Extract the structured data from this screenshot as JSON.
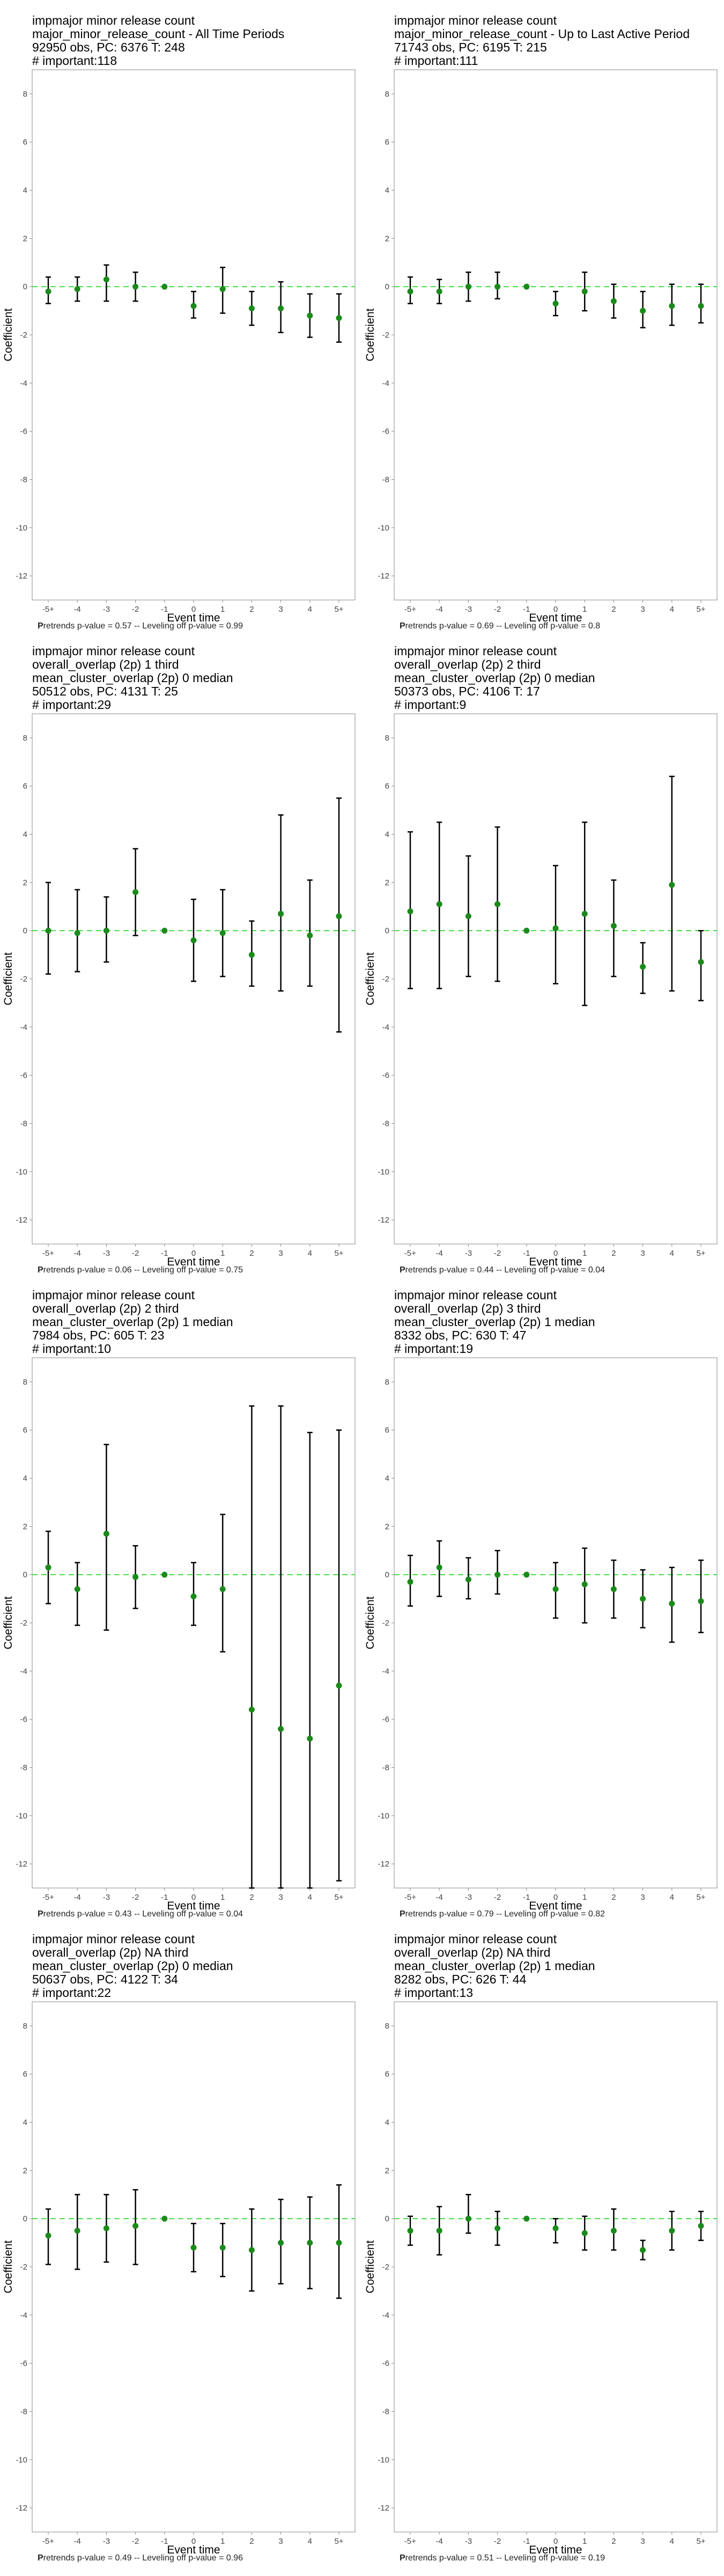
{
  "chart_data": [
    {
      "type": "scatter",
      "title_lines": [
        " impmajor minor release count",
        "major_minor_release_count - All Time Periods",
        "92950 obs, PC: 6376 T: 248",
        "# important:118"
      ],
      "xlabel": "Event time",
      "ylabel": "Coefficient",
      "categories": [
        "-5+",
        "-4",
        "-3",
        "-2",
        "-1",
        "0",
        "1",
        "2",
        "3",
        "4",
        "5+"
      ],
      "ylim": [
        -13,
        9
      ],
      "yticks": [
        -12,
        -10,
        -8,
        -6,
        -4,
        -2,
        0,
        2,
        4,
        6,
        8
      ],
      "values": [
        -0.2,
        -0.1,
        0.3,
        0.0,
        0.0,
        -0.8,
        -0.1,
        -0.9,
        -0.9,
        -1.2,
        -1.3
      ],
      "ci_low": [
        -0.7,
        -0.6,
        -0.6,
        -0.6,
        0.0,
        -1.3,
        -1.1,
        -1.6,
        -1.9,
        -2.1,
        -2.3
      ],
      "ci_high": [
        0.4,
        0.4,
        0.9,
        0.6,
        0.0,
        -0.2,
        0.8,
        -0.2,
        0.2,
        -0.3,
        -0.3
      ],
      "footer_p": "P",
      "footer_rest": "retrends p-value = 0.57 -- Leveling off p-value = 0.99"
    },
    {
      "type": "scatter",
      "title_lines": [
        " impmajor minor release count",
        "major_minor_release_count - Up to Last Active Period",
        "71743 obs, PC: 6195 T: 215",
        "# important:111"
      ],
      "xlabel": "Event time",
      "ylabel": "Coefficient",
      "categories": [
        "-5+",
        "-4",
        "-3",
        "-2",
        "-1",
        "0",
        "1",
        "2",
        "3",
        "4",
        "5+"
      ],
      "ylim": [
        -13,
        9
      ],
      "yticks": [
        -12,
        -10,
        -8,
        -6,
        -4,
        -2,
        0,
        2,
        4,
        6,
        8
      ],
      "values": [
        -0.2,
        -0.2,
        0.0,
        0.0,
        0.0,
        -0.7,
        -0.2,
        -0.6,
        -1.0,
        -0.8,
        -0.8
      ],
      "ci_low": [
        -0.7,
        -0.7,
        -0.6,
        -0.5,
        0.0,
        -1.2,
        -1.0,
        -1.3,
        -1.7,
        -1.6,
        -1.5
      ],
      "ci_high": [
        0.4,
        0.3,
        0.6,
        0.6,
        0.0,
        -0.2,
        0.6,
        0.1,
        -0.2,
        0.1,
        0.1
      ],
      "footer_p": "P",
      "footer_rest": "retrends p-value = 0.69 -- Leveling off p-value = 0.8"
    },
    {
      "type": "scatter",
      "title_lines": [
        " impmajor minor release count",
        "overall_overlap (2p) 1 third",
        "mean_cluster_overlap (2p) 0 median",
        "50512 obs, PC: 4131 T: 25",
        "# important:29"
      ],
      "xlabel": "Event time",
      "ylabel": "Coefficient",
      "categories": [
        "-5+",
        "-4",
        "-3",
        "-2",
        "-1",
        "0",
        "1",
        "2",
        "3",
        "4",
        "5+"
      ],
      "ylim": [
        -13,
        9
      ],
      "yticks": [
        -12,
        -10,
        -8,
        -6,
        -4,
        -2,
        0,
        2,
        4,
        6,
        8
      ],
      "values": [
        0.0,
        -0.1,
        0.0,
        1.6,
        0.0,
        -0.4,
        -0.1,
        -1.0,
        0.7,
        -0.2,
        0.6
      ],
      "ci_low": [
        -1.8,
        -1.7,
        -1.3,
        -0.2,
        0.0,
        -2.1,
        -1.9,
        -2.3,
        -2.5,
        -2.3,
        -4.2
      ],
      "ci_high": [
        2.0,
        1.7,
        1.4,
        3.4,
        0.0,
        1.3,
        1.7,
        0.4,
        4.8,
        2.1,
        5.5
      ],
      "footer_p": "P",
      "footer_rest": "retrends p-value = 0.06 -- Leveling off p-value = 0.75"
    },
    {
      "type": "scatter",
      "title_lines": [
        " impmajor minor release count",
        "overall_overlap (2p) 2 third",
        "mean_cluster_overlap (2p) 0 median",
        "50373 obs, PC: 4106 T: 17",
        "# important:9"
      ],
      "xlabel": "Event time",
      "ylabel": "Coefficient",
      "categories": [
        "-5+",
        "-4",
        "-3",
        "-2",
        "-1",
        "0",
        "1",
        "2",
        "3",
        "4",
        "5+"
      ],
      "ylim": [
        -13,
        9
      ],
      "yticks": [
        -12,
        -10,
        -8,
        -6,
        -4,
        -2,
        0,
        2,
        4,
        6,
        8
      ],
      "values": [
        0.8,
        1.1,
        0.6,
        1.1,
        0.0,
        0.1,
        0.7,
        0.2,
        -1.5,
        1.9,
        -1.3
      ],
      "ci_low": [
        -2.4,
        -2.4,
        -1.9,
        -2.1,
        0.0,
        -2.2,
        -3.1,
        -1.9,
        -2.6,
        -2.5,
        -2.9
      ],
      "ci_high": [
        4.1,
        4.5,
        3.1,
        4.3,
        0.0,
        2.7,
        4.5,
        2.1,
        -0.5,
        6.4,
        0.0
      ],
      "footer_p": "P",
      "footer_rest": "retrends p-value = 0.44 -- Leveling off p-value = 0.04"
    },
    {
      "type": "scatter",
      "title_lines": [
        " impmajor minor release count",
        "overall_overlap (2p) 2 third",
        "mean_cluster_overlap (2p) 1 median",
        "7984 obs, PC: 605 T: 23",
        "# important:10"
      ],
      "xlabel": "Event time",
      "ylabel": "Coefficient",
      "categories": [
        "-5+",
        "-4",
        "-3",
        "-2",
        "-1",
        "0",
        "1",
        "2",
        "3",
        "4",
        "5+"
      ],
      "ylim": [
        -13,
        9
      ],
      "yticks": [
        -12,
        -10,
        -8,
        -6,
        -4,
        -2,
        0,
        2,
        4,
        6,
        8
      ],
      "values": [
        0.3,
        -0.6,
        1.7,
        -0.1,
        0.0,
        -0.9,
        -0.6,
        -5.6,
        -6.4,
        -6.8,
        -4.6
      ],
      "ci_low": [
        -1.2,
        -2.1,
        -2.3,
        -1.4,
        0.0,
        -2.1,
        -3.2,
        -13.0,
        -13.0,
        -13.0,
        -12.7
      ],
      "ci_high": [
        1.8,
        0.5,
        5.4,
        1.2,
        0.0,
        0.5,
        2.5,
        7.0,
        7.0,
        5.9,
        6.0
      ],
      "footer_p": "P",
      "footer_rest": "retrends p-value = 0.43 -- Leveling off p-value = 0.04"
    },
    {
      "type": "scatter",
      "title_lines": [
        " impmajor minor release count",
        "overall_overlap (2p) 3 third",
        "mean_cluster_overlap (2p) 1 median",
        "8332 obs, PC: 630 T: 47",
        "# important:19"
      ],
      "xlabel": "Event time",
      "ylabel": "Coefficient",
      "categories": [
        "-5+",
        "-4",
        "-3",
        "-2",
        "-1",
        "0",
        "1",
        "2",
        "3",
        "4",
        "5+"
      ],
      "ylim": [
        -13,
        9
      ],
      "yticks": [
        -12,
        -10,
        -8,
        -6,
        -4,
        -2,
        0,
        2,
        4,
        6,
        8
      ],
      "values": [
        -0.3,
        0.3,
        -0.2,
        0.0,
        0.0,
        -0.6,
        -0.4,
        -0.6,
        -1.0,
        -1.2,
        -1.1
      ],
      "ci_low": [
        -1.3,
        -0.9,
        -1.0,
        -0.8,
        0.0,
        -1.8,
        -2.0,
        -1.8,
        -2.2,
        -2.8,
        -2.4
      ],
      "ci_high": [
        0.8,
        1.4,
        0.7,
        1.0,
        0.0,
        0.5,
        1.1,
        0.6,
        0.2,
        0.3,
        0.6
      ],
      "footer_p": "P",
      "footer_rest": "retrends p-value = 0.79 -- Leveling off p-value = 0.82"
    },
    {
      "type": "scatter",
      "title_lines": [
        " impmajor minor release count",
        "overall_overlap (2p) NA third",
        "mean_cluster_overlap (2p) 0 median",
        "50637 obs, PC: 4122 T: 34",
        "# important:22"
      ],
      "xlabel": "Event time",
      "ylabel": "Coefficient",
      "categories": [
        "-5+",
        "-4",
        "-3",
        "-2",
        "-1",
        "0",
        "1",
        "2",
        "3",
        "4",
        "5+"
      ],
      "ylim": [
        -13,
        9
      ],
      "yticks": [
        -12,
        -10,
        -8,
        -6,
        -4,
        -2,
        0,
        2,
        4,
        6,
        8
      ],
      "values": [
        -0.7,
        -0.5,
        -0.4,
        -0.3,
        0.0,
        -1.2,
        -1.2,
        -1.3,
        -1.0,
        -1.0,
        -1.0
      ],
      "ci_low": [
        -1.9,
        -2.1,
        -1.8,
        -1.9,
        0.0,
        -2.2,
        -2.4,
        -3.0,
        -2.7,
        -2.9,
        -3.3
      ],
      "ci_high": [
        0.4,
        1.0,
        1.0,
        1.2,
        0.0,
        -0.2,
        -0.2,
        0.4,
        0.8,
        0.9,
        1.4
      ],
      "footer_p": "P",
      "footer_rest": "retrends p-value = 0.49 -- Leveling off p-value = 0.96"
    },
    {
      "type": "scatter",
      "title_lines": [
        " impmajor minor release count",
        "overall_overlap (2p) NA third",
        "mean_cluster_overlap (2p) 1 median",
        "8282 obs, PC: 626 T: 44",
        "# important:13"
      ],
      "xlabel": "Event time",
      "ylabel": "Coefficient",
      "categories": [
        "-5+",
        "-4",
        "-3",
        "-2",
        "-1",
        "0",
        "1",
        "2",
        "3",
        "4",
        "5+"
      ],
      "ylim": [
        -13,
        9
      ],
      "yticks": [
        -12,
        -10,
        -8,
        -6,
        -4,
        -2,
        0,
        2,
        4,
        6,
        8
      ],
      "values": [
        -0.5,
        -0.5,
        0.0,
        -0.4,
        0.0,
        -0.4,
        -0.6,
        -0.5,
        -1.3,
        -0.5,
        -0.3
      ],
      "ci_low": [
        -1.1,
        -1.5,
        -0.6,
        -1.1,
        0.0,
        -1.0,
        -1.3,
        -1.3,
        -1.7,
        -1.3,
        -0.9
      ],
      "ci_high": [
        0.1,
        0.5,
        1.0,
        0.3,
        0.0,
        0.0,
        0.1,
        0.4,
        -0.9,
        0.3,
        0.3
      ],
      "footer_p": "P",
      "footer_rest": "retrends p-value = 0.51 -- Leveling off p-value = 0.19"
    }
  ],
  "colors": {
    "point": "#1a8a1a",
    "zero_line": "#44dd44",
    "errorbar": "#000000",
    "frame": "#888888",
    "tick_text": "#444444"
  }
}
